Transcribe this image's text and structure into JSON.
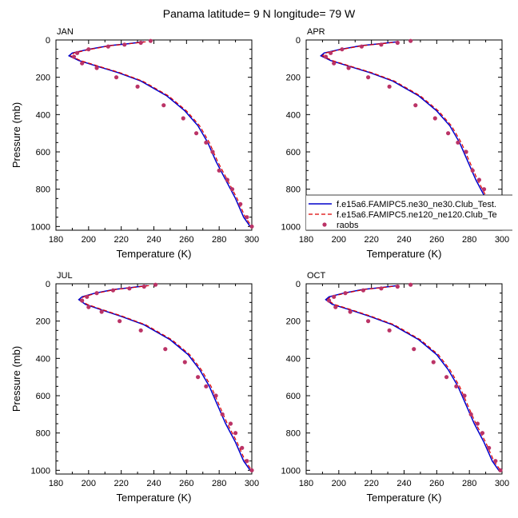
{
  "figure": {
    "title": "Panama  latitude= 9 N longitude= 79 W"
  },
  "colors": {
    "model_a": "#0000cc",
    "model_b": "#dd0000",
    "raobs": "#bb3366",
    "axes": "#000000"
  },
  "legend": {
    "entries": [
      {
        "label": "f.e15a6.FAMIPC5.ne30_ne30.Club_Test.",
        "style": "solid-line",
        "color": "#0000cc"
      },
      {
        "label": "f.e15a6.FAMIPC5.ne120_ne120.Club_Te",
        "style": "dashed-line",
        "color": "#dd0000"
      },
      {
        "label": "raobs",
        "style": "dot",
        "color": "#bb3366"
      }
    ],
    "placement": "bottom-right of APR panel"
  },
  "chart_data": [
    {
      "type": "line",
      "panel_label": "JAN",
      "xlabel": "Temperature (K)",
      "ylabel": "Pressure (mb)",
      "xlim": [
        180,
        300
      ],
      "ylim": [
        0,
        1020
      ],
      "y_inverted": true,
      "xticks": [
        180,
        200,
        220,
        240,
        260,
        280,
        300
      ],
      "yticks": [
        0,
        200,
        400,
        600,
        800,
        1000
      ],
      "series": [
        {
          "role": "model_a",
          "x": [
            234,
            224,
            213,
            200,
            190,
            188,
            194,
            205,
            218,
            232,
            248,
            259,
            267,
            273,
            278,
            284,
            290,
            295,
            299
          ],
          "y": [
            10,
            20,
            30,
            50,
            70,
            85,
            110,
            140,
            175,
            220,
            300,
            380,
            460,
            550,
            650,
            750,
            850,
            950,
            1000
          ]
        },
        {
          "role": "model_b",
          "x": [
            235,
            225,
            214,
            201,
            191,
            189,
            195,
            206,
            219,
            233,
            249,
            260,
            268,
            274,
            279,
            285,
            291,
            296,
            300
          ],
          "y": [
            10,
            20,
            30,
            50,
            70,
            85,
            110,
            140,
            175,
            220,
            300,
            380,
            460,
            550,
            650,
            750,
            850,
            950,
            1000
          ]
        },
        {
          "role": "raobs",
          "x": [
            238,
            232,
            222,
            212,
            200,
            193,
            191,
            196,
            205,
            217,
            230,
            246,
            258,
            266,
            272,
            276,
            280,
            285,
            288,
            293,
            297,
            300
          ],
          "y": [
            5,
            15,
            25,
            35,
            50,
            70,
            90,
            125,
            150,
            200,
            250,
            350,
            420,
            500,
            550,
            600,
            700,
            750,
            800,
            880,
            950,
            1000
          ]
        }
      ]
    },
    {
      "type": "line",
      "panel_label": "APR",
      "xlabel": "Temperature (K)",
      "ylabel": "",
      "xlim": [
        180,
        300
      ],
      "ylim": [
        0,
        1020
      ],
      "y_inverted": true,
      "xticks": [
        180,
        200,
        220,
        240,
        260,
        280,
        300
      ],
      "yticks": [
        0,
        200,
        400,
        600,
        800,
        1000
      ],
      "series": [
        {
          "role": "model_a",
          "x": [
            236,
            225,
            214,
            201,
            191,
            189,
            195,
            206,
            219,
            233,
            249,
            260,
            268,
            274,
            279,
            284,
            290,
            295,
            299
          ],
          "y": [
            10,
            20,
            30,
            50,
            70,
            85,
            110,
            140,
            175,
            220,
            300,
            380,
            460,
            550,
            650,
            750,
            850,
            950,
            1000
          ]
        },
        {
          "role": "model_b",
          "x": [
            237,
            226,
            215,
            202,
            192,
            190,
            196,
            207,
            220,
            234,
            250,
            261,
            269,
            275,
            280,
            285,
            291,
            296,
            300
          ],
          "y": [
            10,
            20,
            30,
            50,
            70,
            85,
            110,
            140,
            175,
            220,
            300,
            380,
            460,
            550,
            650,
            750,
            850,
            950,
            1000
          ]
        },
        {
          "role": "raobs",
          "x": [
            244,
            236,
            226,
            214,
            202,
            195,
            192,
            197,
            206,
            218,
            231,
            247,
            259,
            267,
            273,
            278,
            282,
            286,
            289,
            293,
            297,
            300
          ],
          "y": [
            5,
            15,
            25,
            35,
            50,
            70,
            90,
            125,
            150,
            200,
            250,
            350,
            420,
            500,
            550,
            600,
            700,
            750,
            800,
            880,
            950,
            1000
          ]
        }
      ]
    },
    {
      "type": "line",
      "panel_label": "JUL",
      "xlabel": "Temperature (K)",
      "ylabel": "Pressure (mb)",
      "xlim": [
        180,
        300
      ],
      "ylim": [
        0,
        1020
      ],
      "y_inverted": true,
      "xticks": [
        180,
        200,
        220,
        240,
        260,
        280,
        300
      ],
      "yticks": [
        0,
        200,
        400,
        600,
        800,
        1000
      ],
      "series": [
        {
          "role": "model_a",
          "x": [
            236,
            226,
            216,
            204,
            196,
            194,
            198,
            208,
            220,
            234,
            250,
            261,
            268,
            274,
            279,
            284,
            290,
            295,
            299
          ],
          "y": [
            10,
            20,
            30,
            50,
            70,
            85,
            110,
            140,
            175,
            220,
            300,
            380,
            460,
            550,
            650,
            750,
            850,
            950,
            1000
          ]
        },
        {
          "role": "model_b",
          "x": [
            237,
            227,
            217,
            205,
            197,
            195,
            199,
            209,
            221,
            235,
            251,
            262,
            269,
            275,
            280,
            285,
            291,
            296,
            300
          ],
          "y": [
            10,
            20,
            30,
            50,
            70,
            85,
            110,
            140,
            175,
            220,
            300,
            380,
            460,
            550,
            650,
            750,
            850,
            950,
            1000
          ]
        },
        {
          "role": "raobs",
          "x": [
            241,
            234,
            225,
            215,
            205,
            199,
            196,
            200,
            208,
            219,
            232,
            247,
            259,
            267,
            272,
            278,
            282,
            287,
            290,
            294,
            297,
            300
          ],
          "y": [
            5,
            15,
            25,
            35,
            50,
            70,
            90,
            125,
            150,
            200,
            250,
            350,
            420,
            500,
            550,
            600,
            700,
            750,
            800,
            880,
            950,
            1000
          ]
        }
      ]
    },
    {
      "type": "line",
      "panel_label": "OCT",
      "xlabel": "Temperature (K)",
      "ylabel": "",
      "xlim": [
        180,
        300
      ],
      "ylim": [
        0,
        1020
      ],
      "y_inverted": true,
      "xticks": [
        180,
        200,
        220,
        240,
        260,
        280,
        300
      ],
      "yticks": [
        0,
        200,
        400,
        600,
        800,
        1000
      ],
      "series": [
        {
          "role": "model_a",
          "x": [
            236,
            226,
            215,
            203,
            194,
            192,
            196,
            207,
            219,
            233,
            249,
            260,
            267,
            273,
            278,
            283,
            289,
            294,
            298
          ],
          "y": [
            10,
            20,
            30,
            50,
            70,
            85,
            110,
            140,
            175,
            220,
            300,
            380,
            460,
            550,
            650,
            750,
            850,
            950,
            1000
          ]
        },
        {
          "role": "model_b",
          "x": [
            237,
            227,
            216,
            204,
            195,
            193,
            197,
            208,
            220,
            234,
            250,
            261,
            268,
            274,
            279,
            284,
            290,
            295,
            299
          ],
          "y": [
            10,
            20,
            30,
            50,
            70,
            85,
            110,
            140,
            175,
            220,
            300,
            380,
            460,
            550,
            650,
            750,
            850,
            950,
            1000
          ]
        },
        {
          "role": "raobs",
          "x": [
            244,
            236,
            226,
            215,
            204,
            197,
            194,
            198,
            207,
            218,
            231,
            246,
            258,
            266,
            272,
            277,
            281,
            285,
            288,
            292,
            296,
            299
          ],
          "y": [
            5,
            15,
            25,
            35,
            50,
            70,
            90,
            125,
            150,
            200,
            250,
            350,
            420,
            500,
            550,
            600,
            700,
            750,
            800,
            880,
            950,
            1000
          ]
        }
      ]
    }
  ]
}
